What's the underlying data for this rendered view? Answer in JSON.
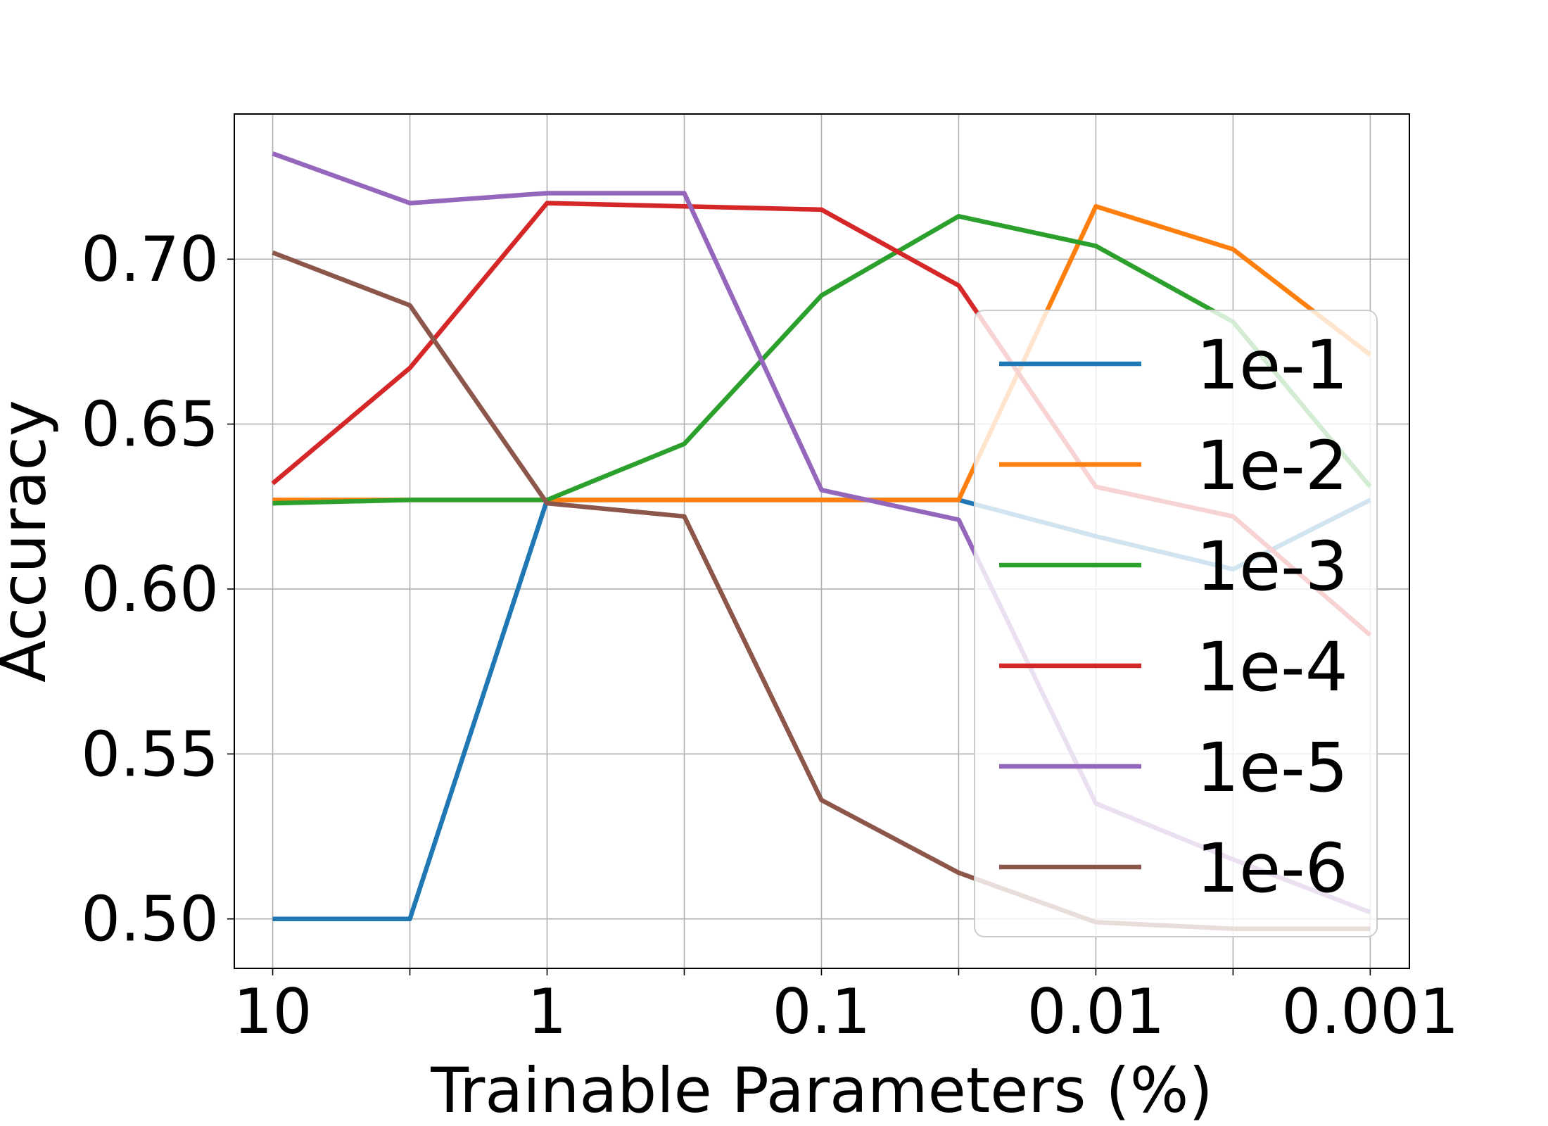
{
  "chart_data": {
    "type": "line",
    "title": "",
    "xlabel": "Trainable Parameters (%)",
    "ylabel": "Accuracy",
    "x_scale": "log",
    "x_reversed": true,
    "x": [
      10,
      3.1623,
      1,
      0.31623,
      0.1,
      0.031623,
      0.01,
      0.0031623,
      0.001
    ],
    "x_ticks": [
      10,
      1,
      0.1,
      0.01,
      0.001
    ],
    "x_tick_labels": [
      "10",
      "1",
      "0.1",
      "0.01",
      "0.001"
    ],
    "xlim": [
      13.8,
      0.00072
    ],
    "ylim": [
      0.485,
      0.744
    ],
    "y_ticks": [
      0.5,
      0.55,
      0.6,
      0.65,
      0.7
    ],
    "y_tick_labels": [
      "0.50",
      "0.55",
      "0.60",
      "0.65",
      "0.70"
    ],
    "grid": true,
    "legend_position": "center-right",
    "series": [
      {
        "name": "1e-1",
        "color": "#1f77b4",
        "values": [
          0.5,
          0.5,
          0.627,
          0.627,
          0.627,
          0.627,
          0.616,
          0.606,
          0.627
        ]
      },
      {
        "name": "1e-2",
        "color": "#ff7f0e",
        "values": [
          0.627,
          0.627,
          0.627,
          0.627,
          0.627,
          0.627,
          0.716,
          0.703,
          0.671
        ]
      },
      {
        "name": "1e-3",
        "color": "#2ca02c",
        "values": [
          0.626,
          0.627,
          0.627,
          0.644,
          0.689,
          0.713,
          0.704,
          0.681,
          0.631
        ]
      },
      {
        "name": "1e-4",
        "color": "#d62728",
        "values": [
          0.632,
          0.667,
          0.717,
          0.716,
          0.715,
          0.692,
          0.631,
          0.622,
          0.586
        ]
      },
      {
        "name": "1e-5",
        "color": "#9467bd",
        "values": [
          0.732,
          0.717,
          0.72,
          0.72,
          0.63,
          0.621,
          0.535,
          0.518,
          0.502
        ]
      },
      {
        "name": "1e-6",
        "color": "#8c564b",
        "values": [
          0.702,
          0.686,
          0.626,
          0.622,
          0.536,
          0.514,
          0.499,
          0.497,
          0.497
        ]
      }
    ]
  }
}
